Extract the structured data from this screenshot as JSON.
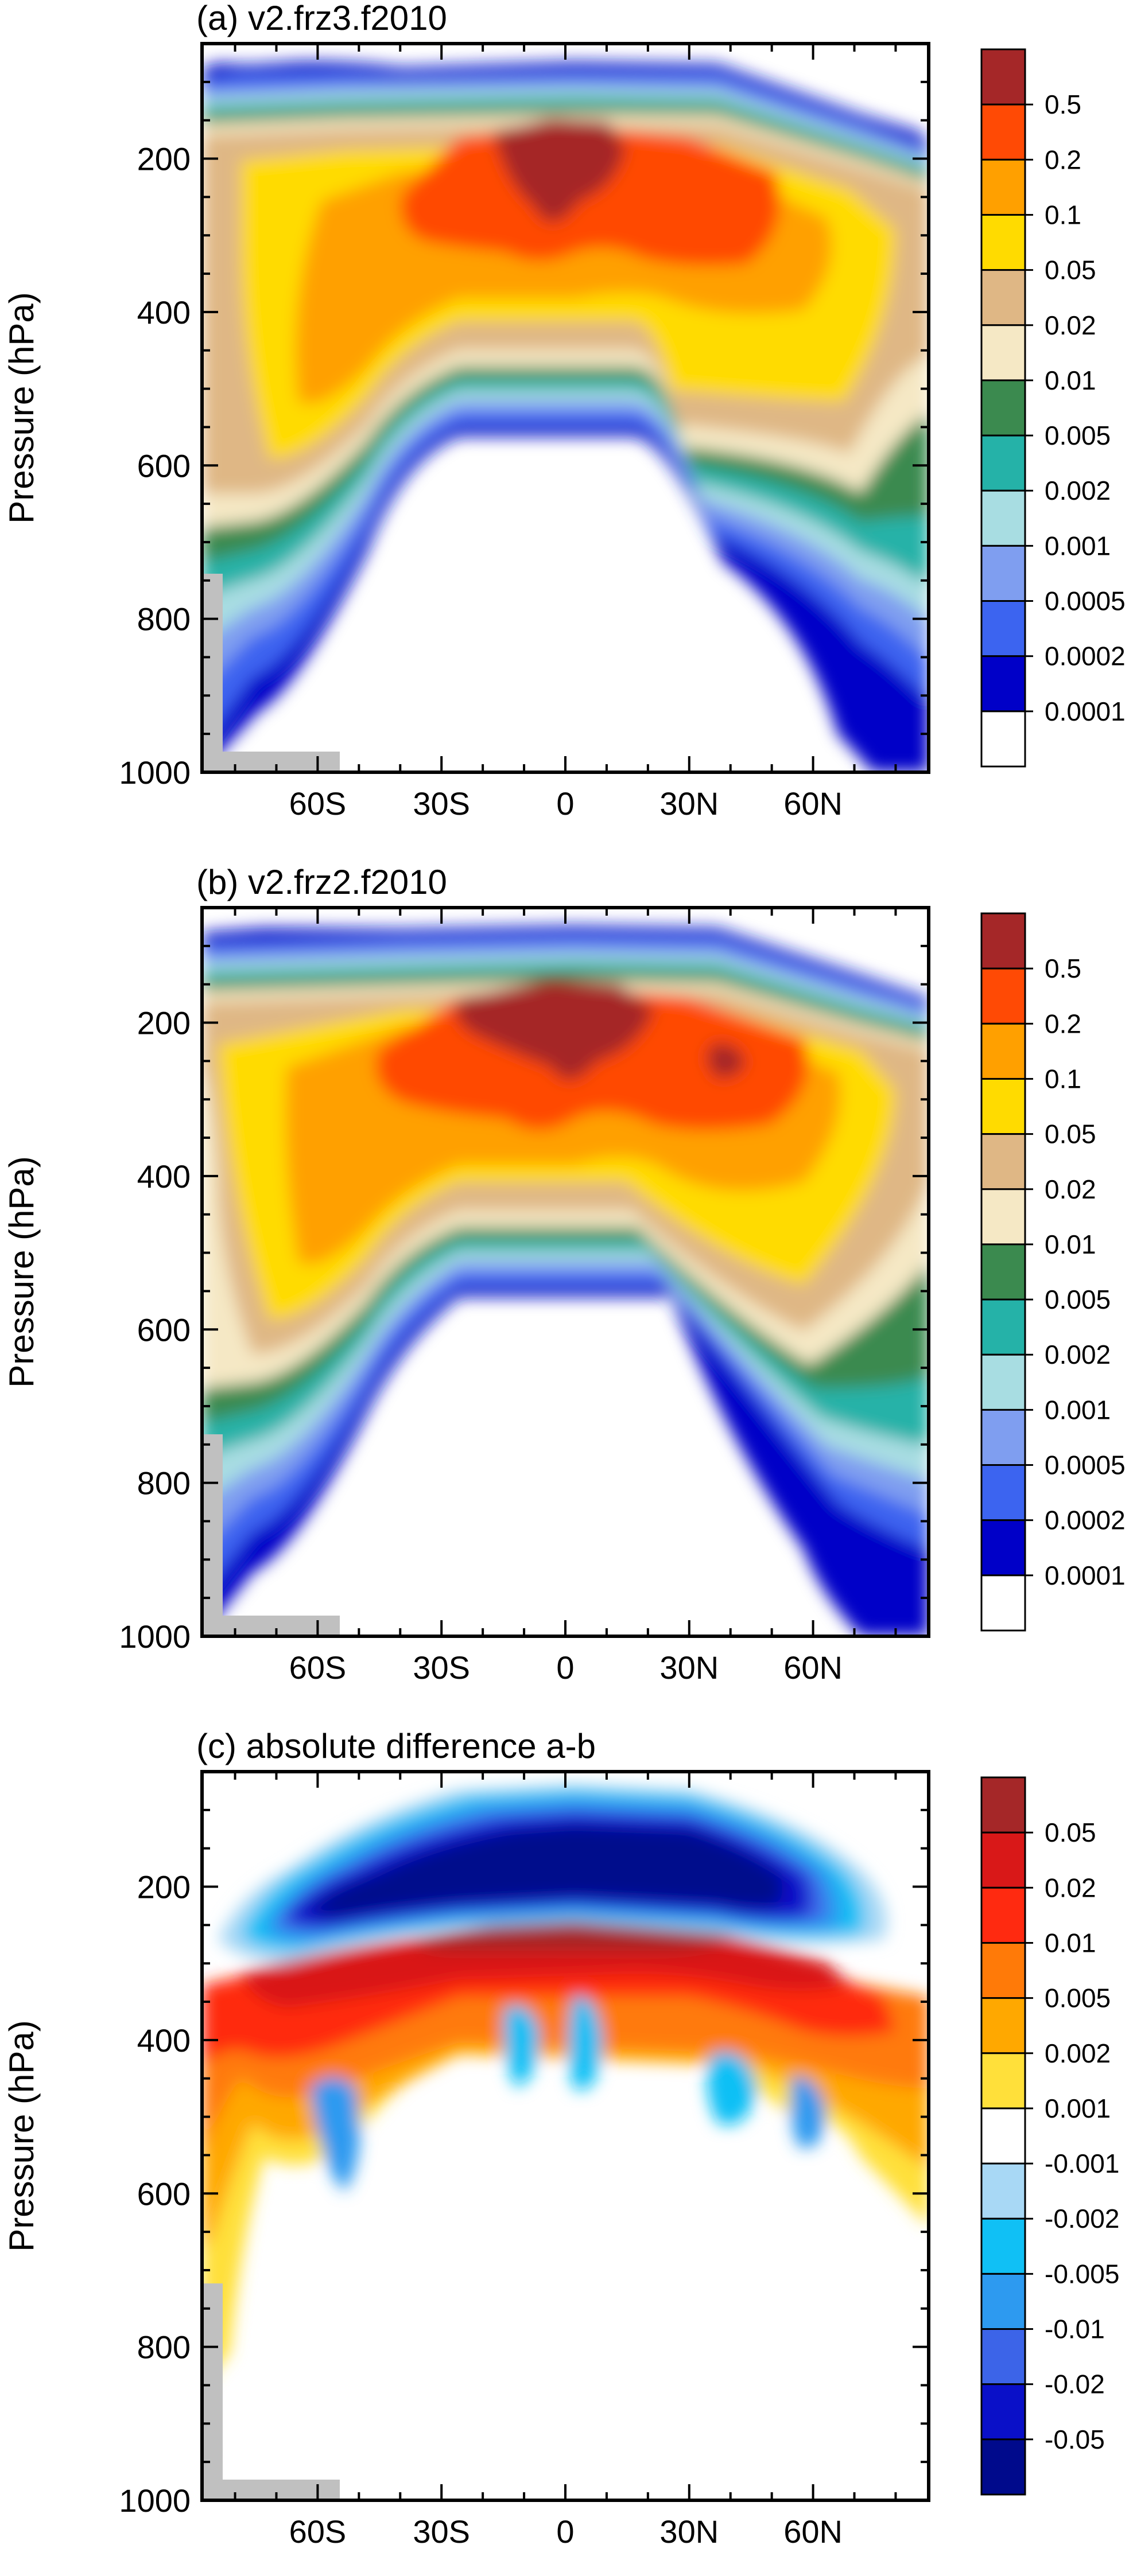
{
  "chart_data": [
    {
      "type": "heatmap",
      "title": "(a) v2.frz3.f2010",
      "ylabel": "Pressure (hPa)",
      "xlabel": "",
      "y_ticks": [
        "200",
        "400",
        "600",
        "800",
        "1000"
      ],
      "x_ticks": [
        "60S",
        "30S",
        "0",
        "30N",
        "60N"
      ],
      "x_tick_values": [
        -60,
        -30,
        0,
        30,
        60
      ],
      "y_tick_values": [
        200,
        400,
        600,
        800,
        1000
      ],
      "xlim": [
        -88,
        88
      ],
      "ylim": [
        1000,
        50
      ],
      "colorbar": {
        "labels": [
          "0.5",
          "0.2",
          "0.1",
          "0.05",
          "0.02",
          "0.01",
          "0.005",
          "0.002",
          "0.001",
          "0.0005",
          "0.0002",
          "0.0001"
        ],
        "colors": [
          "#a52728",
          "#ff4a05",
          "#ffa000",
          "#ffdb00",
          "#dfb785",
          "#f5e8c5",
          "#3b8a4f",
          "#25b2a8",
          "#a8dde2",
          "#7f9ef0",
          "#3c64f0",
          "#0000c8",
          "#ffffff"
        ]
      }
    },
    {
      "type": "heatmap",
      "title": "(b) v2.frz2.f2010",
      "ylabel": "Pressure (hPa)",
      "xlabel": "",
      "y_ticks": [
        "200",
        "400",
        "600",
        "800",
        "1000"
      ],
      "x_ticks": [
        "60S",
        "30S",
        "0",
        "30N",
        "60N"
      ],
      "x_tick_values": [
        -60,
        -30,
        0,
        30,
        60
      ],
      "y_tick_values": [
        200,
        400,
        600,
        800,
        1000
      ],
      "xlim": [
        -88,
        88
      ],
      "ylim": [
        1000,
        50
      ],
      "colorbar": {
        "labels": [
          "0.5",
          "0.2",
          "0.1",
          "0.05",
          "0.02",
          "0.01",
          "0.005",
          "0.002",
          "0.001",
          "0.0005",
          "0.0002",
          "0.0001"
        ],
        "colors": [
          "#a52728",
          "#ff4a05",
          "#ffa000",
          "#ffdb00",
          "#dfb785",
          "#f5e8c5",
          "#3b8a4f",
          "#25b2a8",
          "#a8dde2",
          "#7f9ef0",
          "#3c64f0",
          "#0000c8",
          "#ffffff"
        ]
      }
    },
    {
      "type": "heatmap",
      "title": "(c) absolute difference a-b",
      "ylabel": "Pressure (hPa)",
      "xlabel": "",
      "y_ticks": [
        "200",
        "400",
        "600",
        "800",
        "1000"
      ],
      "x_ticks": [
        "60S",
        "30S",
        "0",
        "30N",
        "60N"
      ],
      "x_tick_values": [
        -60,
        -30,
        0,
        30,
        60
      ],
      "y_tick_values": [
        200,
        400,
        600,
        800,
        1000
      ],
      "xlim": [
        -88,
        88
      ],
      "ylim": [
        1000,
        50
      ],
      "colorbar": {
        "labels": [
          "0.05",
          "0.02",
          "0.01",
          "0.005",
          "0.002",
          "0.001",
          "-0.001",
          "-0.002",
          "-0.005",
          "-0.01",
          "-0.02",
          "-0.05"
        ],
        "colors": [
          "#a52728",
          "#d91818",
          "#ff2a10",
          "#ff7a08",
          "#ffa800",
          "#ffe03a",
          "#ffffff",
          "#a8d8f5",
          "#10c0f5",
          "#2d9af0",
          "#3c64e8",
          "#0a10c8",
          "#000a8c"
        ]
      }
    }
  ]
}
